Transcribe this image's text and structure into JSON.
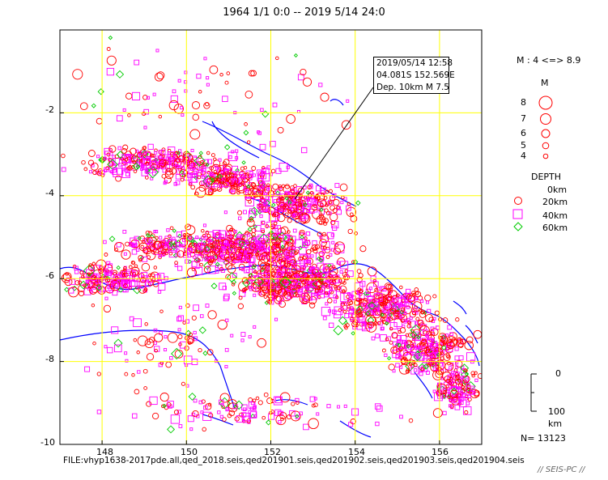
{
  "title": "1964 1/1 0:0 -- 2019 5/14 24:0",
  "map": {
    "lon_ticks": [
      "148",
      "150",
      "152",
      "154",
      "156"
    ],
    "lat_ticks": [
      "-2",
      "-4",
      "-6",
      "-8",
      "-10"
    ],
    "lon_range": [
      147,
      157
    ],
    "lat_range": [
      -10,
      0
    ],
    "grid_color": "#ffff00",
    "coast_color": "#0000ff"
  },
  "callout": {
    "line1": "2019/05/14 12:58",
    "line2": "04.081S  152.569E",
    "line3": "Dep. 10km   M 7.5",
    "lon": 152.569,
    "lat": -4.081
  },
  "legend": {
    "mag_range": "M : 4 <=> 8.9",
    "mag_title": "M",
    "mag_values": [
      "8",
      "7",
      "6",
      "5",
      "4"
    ],
    "depth_title": "DEPTH",
    "depths": [
      "0km",
      "20km",
      "40km",
      "60km"
    ],
    "depth_colors": [
      "#ff0000",
      "#ff00ff",
      "#00cc00"
    ]
  },
  "scale": {
    "top": "0",
    "bottom": "100",
    "unit": "km"
  },
  "count": "N= 13123",
  "file": "FILE:vhyp1638-2017pde.all,qed_2018.seis,qed201901.seis,qed201902.seis,qed201903.seis,qed201904.seis",
  "brand": "// SEIS-PC //"
}
